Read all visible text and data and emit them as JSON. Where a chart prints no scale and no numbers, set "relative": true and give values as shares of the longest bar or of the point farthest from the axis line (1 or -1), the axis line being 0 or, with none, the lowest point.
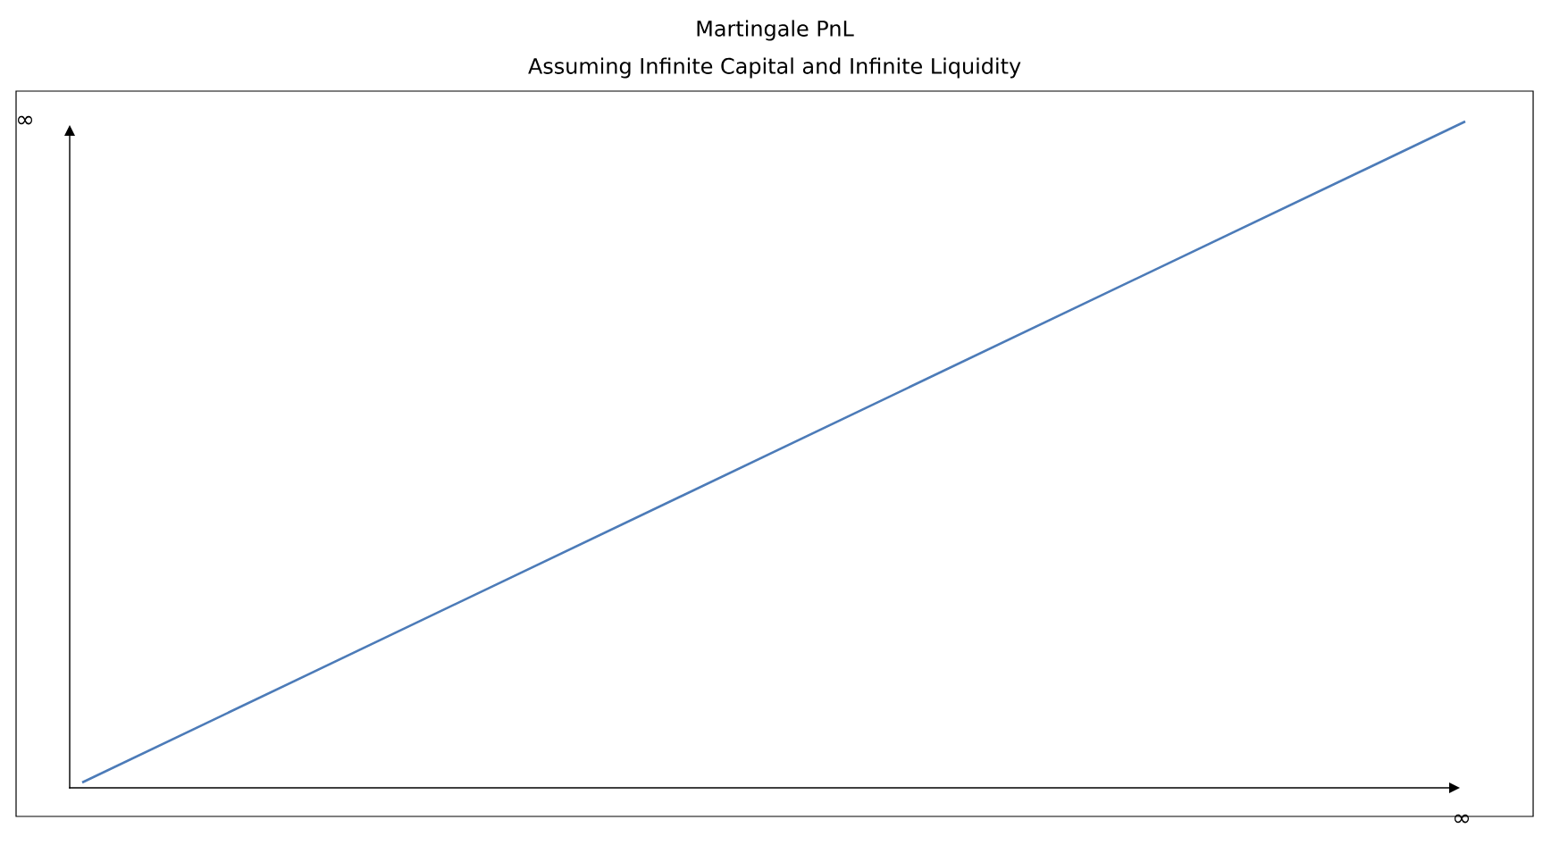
{
  "chart_data": {
    "type": "line",
    "title": "Martingale PnL",
    "subtitle": "Assuming Infinite Capital and Infinite Liquidity",
    "categories": [
      null,
      null
    ],
    "values": [
      0,
      1
    ],
    "color": "#4c7bb8",
    "relative": true,
    "annotations": [
      "∞",
      "∞"
    ]
  }
}
